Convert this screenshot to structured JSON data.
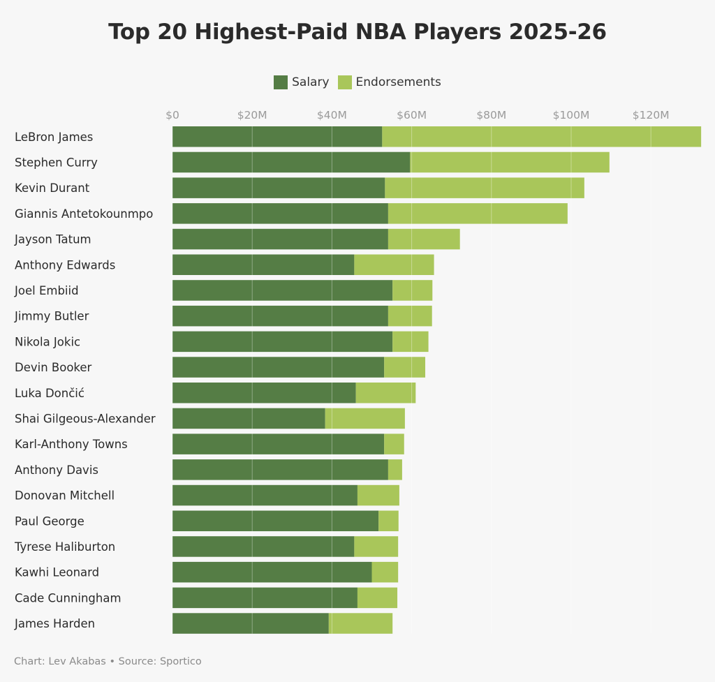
{
  "title": "Top 20 Highest-Paid NBA Players 2025-26",
  "legend": {
    "salary": "Salary",
    "endorsements": "Endorsements"
  },
  "colors": {
    "salary": "#557d45",
    "endorsements": "#a9c65a"
  },
  "footer": {
    "author": "Chart: Lev Akabas",
    "separator": " • ",
    "source": "Source: Sportico"
  },
  "chart_data": {
    "type": "bar",
    "orientation": "horizontal",
    "stacked": true,
    "title": "Top 20 Highest-Paid NBA Players 2025-26",
    "xlabel": "",
    "ylabel": "",
    "xlim": [
      0,
      130
    ],
    "ticks": [
      0,
      20,
      40,
      60,
      80,
      100,
      120
    ],
    "tick_labels": [
      "$0",
      "$20M",
      "$40M",
      "$60M",
      "$80M",
      "$100M",
      "$120M"
    ],
    "grid": true,
    "legend_position": "top-center",
    "categories": [
      "LeBron James",
      "Stephen Curry",
      "Kevin Durant",
      "Giannis Antetokounmpo",
      "Jayson Tatum",
      "Anthony Edwards",
      "Joel Embiid",
      "Jimmy Butler",
      "Nikola Jokic",
      "Devin Booker",
      "Luka Dončić",
      "Shai Gilgeous-Alexander",
      "Karl-Anthony Towns",
      "Anthony Davis",
      "Donovan Mitchell",
      "Paul George",
      "Tyrese Haliburton",
      "Kawhi Leonard",
      "Cade Cunningham",
      "James Harden"
    ],
    "series": [
      {
        "name": "Salary",
        "values": [
          52.6,
          59.6,
          53.3,
          54.1,
          54.1,
          45.6,
          55.2,
          54.1,
          55.2,
          53.1,
          46.0,
          38.3,
          53.1,
          54.1,
          46.4,
          51.7,
          45.6,
          50.0,
          46.4,
          39.2
        ]
      },
      {
        "name": "Endorsements",
        "values": [
          80.0,
          50.0,
          50.0,
          45.0,
          18.0,
          20.0,
          10.0,
          11.0,
          9.0,
          10.3,
          15.0,
          20.0,
          5.0,
          3.5,
          10.5,
          5.0,
          11.0,
          6.6,
          10.0,
          16.0
        ]
      }
    ]
  }
}
